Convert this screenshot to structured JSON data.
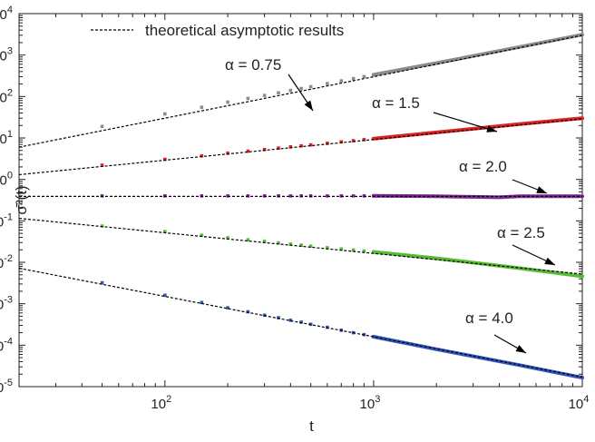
{
  "chart_data": {
    "type": "line",
    "xscale": "log",
    "yscale": "log",
    "xlim": [
      20,
      10000
    ],
    "ylim": [
      1e-05,
      10000
    ],
    "xlabel": "t",
    "ylabel": "σ̄²(t)",
    "x_ticks": [
      {
        "value": 100,
        "base": "10",
        "exp": "2"
      },
      {
        "value": 1000,
        "base": "10",
        "exp": "3"
      },
      {
        "value": 10000,
        "base": "10",
        "exp": "4"
      }
    ],
    "y_ticks": [
      {
        "value": 1e-05,
        "base": "10",
        "exp": "-5"
      },
      {
        "value": 0.0001,
        "base": "10",
        "exp": "-4"
      },
      {
        "value": 0.001,
        "base": "10",
        "exp": "-3"
      },
      {
        "value": 0.01,
        "base": "10",
        "exp": "-2"
      },
      {
        "value": 0.1,
        "base": "10",
        "exp": "-1"
      },
      {
        "value": 1,
        "base": "10",
        "exp": "0"
      },
      {
        "value": 10,
        "base": "10",
        "exp": "1"
      },
      {
        "value": 100,
        "base": "10",
        "exp": "2"
      },
      {
        "value": 1000,
        "base": "10",
        "exp": "3"
      },
      {
        "value": 10000,
        "base": "10",
        "exp": "4"
      }
    ],
    "legend": {
      "position": "top-left",
      "entries": [
        {
          "label": "theoretical asymptotic results",
          "style": "dashed",
          "color": "#000000"
        }
      ]
    },
    "series": [
      {
        "label": "α = 0.75",
        "color": "#8c8c8c",
        "theory": {
          "x": [
            20,
            10000
          ],
          "y": [
            6,
            3000
          ]
        },
        "points": {
          "x": [
            50,
            100,
            150,
            200,
            250,
            300,
            350,
            400,
            450,
            500,
            600,
            700,
            800,
            900,
            1000
          ],
          "y": [
            19,
            38,
            55,
            73,
            90,
            106,
            123,
            140,
            156,
            172,
            205,
            238,
            270,
            302,
            335
          ]
        },
        "curve": {
          "x": [
            1000,
            2000,
            5000,
            10000
          ],
          "y": [
            335,
            640,
            1560,
            3100
          ]
        },
        "annotation": {
          "text": "α = 0.75",
          "at": [
            250,
            75
          ]
        }
      },
      {
        "label": "α = 1.5",
        "color": "#dd2222",
        "theory": {
          "x": [
            20,
            10000
          ],
          "y": [
            1.3,
            29
          ]
        },
        "points": {
          "x": [
            50,
            100,
            150,
            200,
            250,
            300,
            350,
            400,
            450,
            500,
            600,
            700,
            800,
            900,
            1000
          ],
          "y": [
            2.2,
            3.05,
            3.7,
            4.3,
            4.8,
            5.25,
            5.7,
            6.1,
            6.45,
            6.8,
            7.45,
            8.05,
            8.6,
            9.1,
            9.6
          ]
        },
        "curve": {
          "x": [
            1000,
            2000,
            5000,
            10000
          ],
          "y": [
            9.6,
            13.6,
            21.5,
            30
          ]
        },
        "annotation": {
          "text": "α = 1.5",
          "at": [
            2100,
            14
          ]
        }
      },
      {
        "label": "α = 2.0",
        "color": "#7a2a8a",
        "theory": {
          "x": [
            20,
            10000
          ],
          "y": [
            0.39,
            0.39
          ]
        },
        "points": {
          "x": [
            50,
            100,
            150,
            200,
            250,
            300,
            350,
            400,
            450,
            500,
            600,
            700,
            800,
            900,
            1000
          ],
          "y": [
            0.4,
            0.4,
            0.4,
            0.4,
            0.4,
            0.4,
            0.4,
            0.4,
            0.4,
            0.4,
            0.4,
            0.4,
            0.4,
            0.4,
            0.4
          ]
        },
        "curve": {
          "x": [
            1000,
            2000,
            3000,
            4000,
            5000,
            10000
          ],
          "y": [
            0.4,
            0.39,
            0.38,
            0.37,
            0.39,
            0.39
          ]
        },
        "annotation": {
          "text": "α = 2.0",
          "at": [
            3600,
            0.4
          ]
        }
      },
      {
        "label": "α = 2.5",
        "color": "#55bb33",
        "theory": {
          "x": [
            20,
            10000
          ],
          "y": [
            0.115,
            0.0052
          ]
        },
        "points": {
          "x": [
            50,
            100,
            150,
            200,
            250,
            300,
            350,
            400,
            450,
            500,
            600,
            700,
            800,
            900,
            1000
          ],
          "y": [
            0.075,
            0.055,
            0.045,
            0.039,
            0.035,
            0.032,
            0.0295,
            0.0275,
            0.026,
            0.0245,
            0.0225,
            0.021,
            0.0198,
            0.0187,
            0.0178
          ]
        },
        "curve": {
          "x": [
            1000,
            2000,
            5000,
            10000
          ],
          "y": [
            0.0178,
            0.0125,
            0.0072,
            0.0046
          ]
        },
        "annotation": {
          "text": "α = 2.5",
          "at": [
            5400,
            0.0068
          ]
        }
      },
      {
        "label": "α = 4.0",
        "color": "#3355bb",
        "theory": {
          "x": [
            20,
            10000
          ],
          "y": [
            0.0072,
            1.7e-05
          ]
        },
        "points": {
          "x": [
            50,
            100,
            150,
            200,
            250,
            300,
            350,
            400,
            450,
            500,
            600,
            700,
            800,
            900,
            1000
          ],
          "y": [
            0.0032,
            0.0016,
            0.00107,
            0.0008,
            0.00064,
            0.00053,
            0.00046,
            0.0004,
            0.00036,
            0.00032,
            0.00027,
            0.00023,
            0.0002,
            0.00018,
            0.00016
          ]
        },
        "curve": {
          "x": [
            1000,
            2000,
            5000,
            10000
          ],
          "y": [
            0.00016,
            8e-05,
            3.3e-05,
            1.65e-05
          ]
        },
        "annotation": {
          "text": "α = 4.0",
          "at": [
            5600,
            5.5e-05
          ]
        }
      }
    ]
  }
}
